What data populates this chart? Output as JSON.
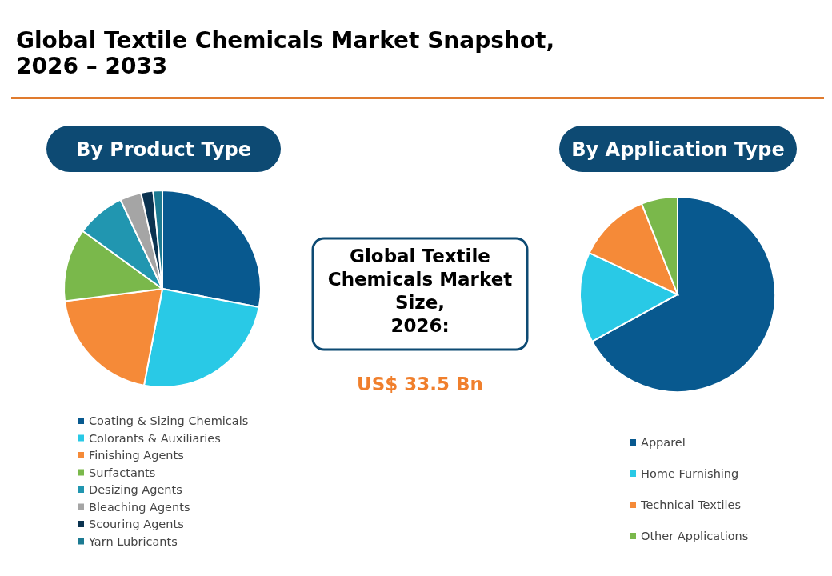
{
  "chart_data": [
    {
      "type": "pie",
      "title": "Global Textile Chemicals Market Snapshot,\n2026 – 2033",
      "subtitle": "By Product Type",
      "categories": [
        "Coating & Sizing Chemicals",
        "Colorants & Auxiliaries",
        "Finishing Agents",
        "Surfactants",
        "Desizing Agents",
        "Bleaching Agents",
        "Scouring Agents",
        "Yarn Lubricants"
      ],
      "values": [
        28,
        25,
        20,
        12,
        8,
        3.5,
        2,
        1.5
      ],
      "colors": [
        "#08598f",
        "#29c9e6",
        "#f58a38",
        "#7ab84b",
        "#2196b0",
        "#a5a5a5",
        "#0b3350",
        "#1c7a92"
      ],
      "legend": "bottom"
    },
    {
      "type": "other",
      "title": "Global Textile\nChemicals Market\nSize,\n2026:",
      "annotations": [
        "US$ 33.5 Bn"
      ]
    },
    {
      "type": "pie",
      "subtitle": "By Application Type",
      "categories": [
        "Apparel",
        "Home Furnishing",
        "Technical Textiles",
        "Other Applications"
      ],
      "values": [
        67,
        15,
        12,
        6
      ],
      "colors": [
        "#08598f",
        "#29c9e6",
        "#f58a38",
        "#7ab84b"
      ],
      "legend": "bottom"
    }
  ]
}
